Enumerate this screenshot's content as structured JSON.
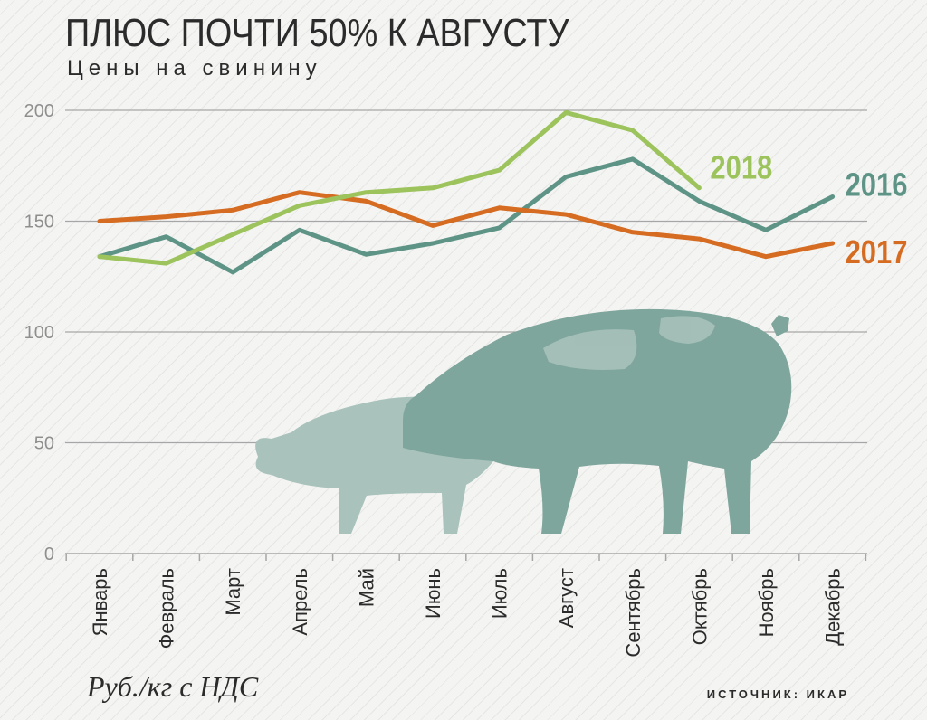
{
  "chart_data": {
    "type": "line",
    "title": "ПЛЮС ПОЧТИ 50% К АВГУСТУ",
    "subtitle": "Цены на свинину",
    "units": "Руб./кг с НДС",
    "source": "ИСТОЧНИК: ИКАР",
    "categories": [
      "Январь",
      "Февраль",
      "Март",
      "Апрель",
      "Май",
      "Июнь",
      "Июль",
      "Август",
      "Сентябрь",
      "Октябрь",
      "Ноябрь",
      "Декабрь"
    ],
    "ylim": [
      0,
      200
    ],
    "yticks": [
      0,
      50,
      100,
      150,
      200
    ],
    "grid": true,
    "series": [
      {
        "name": "2016",
        "color": "#5e9486",
        "values": [
          134,
          143,
          127,
          146,
          135,
          140,
          147,
          170,
          178,
          159,
          146,
          161
        ]
      },
      {
        "name": "2017",
        "color": "#d56c21",
        "values": [
          150,
          152,
          155,
          163,
          159,
          148,
          156,
          153,
          145,
          142,
          134,
          140
        ]
      },
      {
        "name": "2018",
        "color": "#9cc35c",
        "values": [
          134,
          131,
          144,
          157,
          163,
          165,
          173,
          199,
          191,
          165,
          null,
          null
        ]
      }
    ]
  },
  "illustration": {
    "name": "pigs-illustration",
    "colors": [
      "#7fa69c",
      "#a9c3bc"
    ]
  }
}
